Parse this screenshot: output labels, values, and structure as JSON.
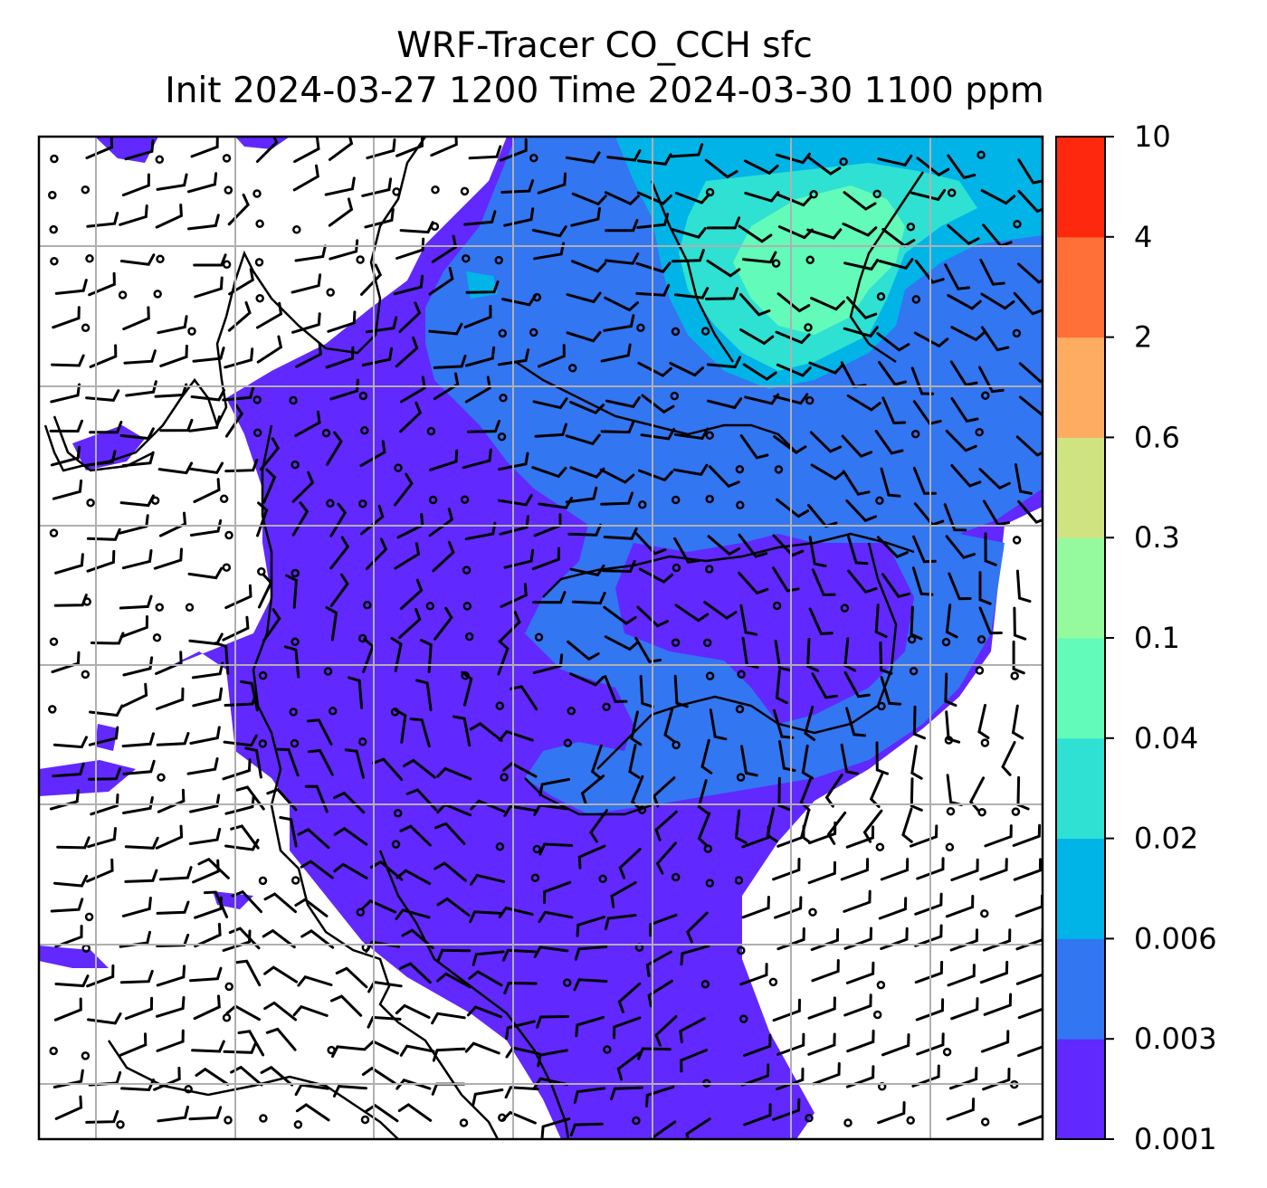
{
  "title": {
    "line1": "WRF-Tracer CO_CCH sfc",
    "line2": "Init 2024-03-27 1200 Time 2024-03-30 1100 ppm"
  },
  "colorbar": {
    "levels": [
      "0.001",
      "0.003",
      "0.006",
      "0.02",
      "0.04",
      "0.1",
      "0.3",
      "0.6",
      "2",
      "4",
      "10"
    ],
    "colors": [
      "#6128ff",
      "#3276f2",
      "#00b4e8",
      "#2fe1d2",
      "#63fbb9",
      "#95fa9e",
      "#cfe381",
      "#fdac61",
      "#ff6f38",
      "#fe280f"
    ]
  },
  "map": {
    "background": "#ffffff",
    "gridline_color": "#b0b0b0",
    "coastline_color": "#000000",
    "wind_barb_color": "#000000"
  }
}
